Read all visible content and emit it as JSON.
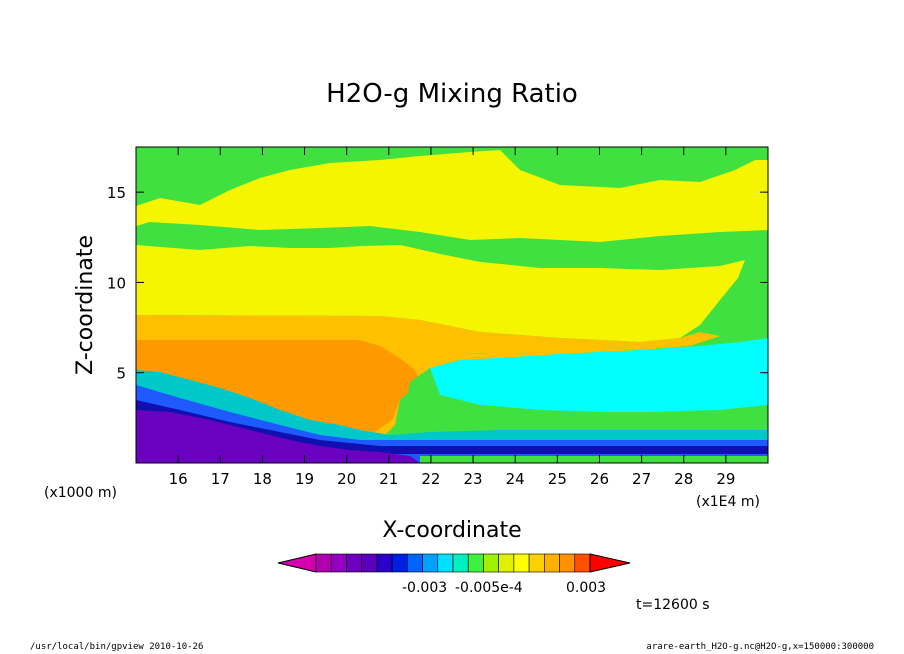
{
  "chart_data": {
    "type": "heatmap",
    "title": "H2O-g Mixing Ratio",
    "xlabel": "X-coordinate",
    "ylabel": "Z-coordinate",
    "x_unit_left": "(x1000 m)",
    "x_unit_right": "(x1E4 m)",
    "x_ticks": [
      "16",
      "17",
      "18",
      "19",
      "20",
      "21",
      "22",
      "23",
      "24",
      "25",
      "26",
      "27",
      "28",
      "29"
    ],
    "y_ticks": [
      "5",
      "10",
      "15"
    ],
    "xlim": [
      15.0,
      30.0
    ],
    "ylim": [
      0.0,
      17.5
    ],
    "grid": false,
    "colorbar": {
      "labels": [
        "-0.003",
        "-0.005e-4",
        "0.003"
      ],
      "colors": [
        "#d400b0",
        "#b000b0",
        "#9400c0",
        "#7000c0",
        "#5a00b8",
        "#2a00c8",
        "#0020e0",
        "#0064ff",
        "#00a0ff",
        "#00e0ff",
        "#00f0c0",
        "#40f040",
        "#a0f000",
        "#e0f000",
        "#ffff00",
        "#ffd000",
        "#ffb000",
        "#ff9000",
        "#ff5000",
        "#ff0000"
      ]
    },
    "regions": [
      {
        "name": "background",
        "color": "#40e040"
      },
      {
        "name": "upper-yellow",
        "color": "#f5f500"
      },
      {
        "name": "upper-green-band",
        "color": "#40e040"
      },
      {
        "name": "mid-yellow",
        "color": "#f5f500"
      },
      {
        "name": "light-orange",
        "color": "#ffc000"
      },
      {
        "name": "orange",
        "color": "#ff9900"
      },
      {
        "name": "cyan",
        "color": "#00ffff"
      },
      {
        "name": "green-low",
        "color": "#40e040"
      },
      {
        "name": "teal",
        "color": "#00c8c8"
      },
      {
        "name": "blue",
        "color": "#1e5aff"
      },
      {
        "name": "navy",
        "color": "#1010b0"
      },
      {
        "name": "purple",
        "color": "#6a00c0"
      }
    ],
    "annotation": "t=12600 s"
  },
  "footer": {
    "left": "/usr/local/bin/gpview  2010-10-26",
    "right": "arare-earth_H2O-g.nc@H2O-g,x=150000:300000"
  }
}
